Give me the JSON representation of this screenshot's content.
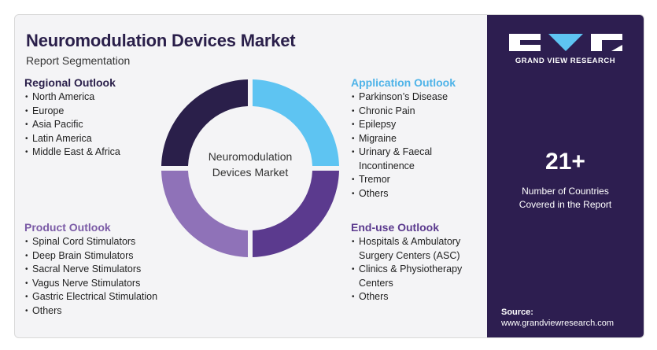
{
  "header": {
    "title": "Neuromodulation Devices Market",
    "subtitle": "Report Segmentation"
  },
  "center_label": {
    "line1": "Neuromodulation",
    "line2": "Devices Market"
  },
  "sections": {
    "regional": {
      "heading": "Regional Outlook",
      "items": [
        "North America",
        "Europe",
        "Asia Pacific",
        "Latin America",
        "Middle East & Africa"
      ]
    },
    "product": {
      "heading": "Product Outlook",
      "items": [
        "Spinal Cord Stimulators",
        "Deep Brain Stimulators",
        "Sacral Nerve Stimulators",
        "Vagus Nerve Stimulators",
        "Gastric Electrical Stimulation",
        "Others"
      ]
    },
    "application": {
      "heading": "Application Outlook",
      "items": [
        "Parkinson’s Disease",
        "Chronic Pain",
        "Epilepsy",
        "Migraine",
        "Urinary & Faecal",
        "Incontinence",
        "Tremor",
        "Others"
      ]
    },
    "enduse": {
      "heading": "End-use Outlook",
      "items": [
        "Hospitals & Ambulatory",
        "Surgery Centers (ASC)",
        "Clinics & Physiotherapy",
        "Centers",
        "Others"
      ]
    }
  },
  "sidebar": {
    "brand": "GRAND VIEW RESEARCH",
    "stat_value": "21+",
    "stat_label_line1": "Number of Countries",
    "stat_label_line2": "Covered in the Report",
    "source_label": "Source:",
    "source_url": "www.grandviewresearch.com"
  },
  "colors": {
    "regional": "#2a1f4a",
    "application": "#5ec4f2",
    "enduse": "#5b3a8e",
    "product": "#8f72b8",
    "panel": "#2d1e50"
  }
}
